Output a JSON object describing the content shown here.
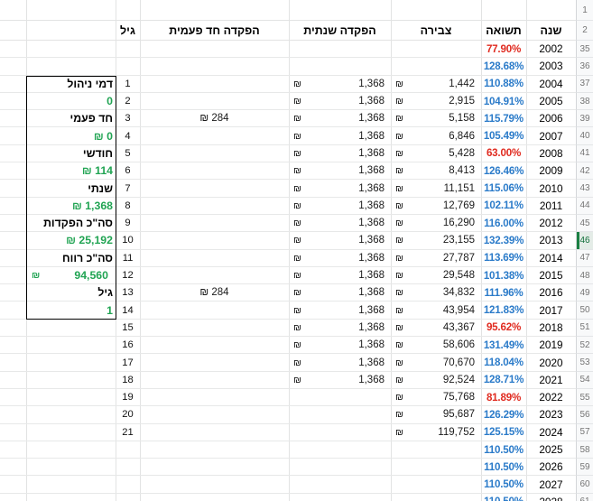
{
  "app": {
    "type": "spreadsheet",
    "direction": "rtl"
  },
  "currency_symbol": "₪",
  "colors": {
    "positive_return": "#2b7bc9",
    "negative_return": "#e02b20",
    "panel_value_green": "#21a453",
    "selected_row_green": "#1b8043",
    "grid_line": "#e2e3e3",
    "gutter_background": "#f8f9fa",
    "gutter_text": "#757575"
  },
  "columns": {
    "year": "שנה",
    "return": "תשואה",
    "accumulation": "צבירה",
    "annual_deposit": "הפקדה שנתית",
    "one_time_deposit": "הפקדה חד פעמית",
    "age": "גיל"
  },
  "gutter": {
    "top_rows": [
      "1",
      "2"
    ],
    "selected_row": "46"
  },
  "left_panel": {
    "cells": [
      {
        "type": "label",
        "text": "דמי ניהול"
      },
      {
        "type": "value",
        "text": "0"
      },
      {
        "type": "label",
        "text": "חד פעמי"
      },
      {
        "type": "value",
        "text": "0",
        "currency": true
      },
      {
        "type": "label",
        "text": "חודשי"
      },
      {
        "type": "value",
        "text": "114",
        "currency": true
      },
      {
        "type": "label",
        "text": "שנתי"
      },
      {
        "type": "value",
        "text": "1,368",
        "currency": true
      },
      {
        "type": "label",
        "text": "סה\"כ הפקדות"
      },
      {
        "type": "value",
        "text": "25,192",
        "currency": true
      },
      {
        "type": "label",
        "text": "סה\"כ רווח"
      },
      {
        "type": "value_accounting",
        "text": "94,560"
      },
      {
        "type": "label",
        "text": "גיל"
      },
      {
        "type": "value",
        "text": "1"
      }
    ]
  },
  "rows": [
    {
      "n": "35",
      "year": "2002",
      "ret": "77.90%",
      "neg": true
    },
    {
      "n": "36",
      "year": "2003",
      "ret": "128.68%"
    },
    {
      "n": "37",
      "year": "2004",
      "ret": "110.88%",
      "accum": "1,442",
      "annual": "1,368",
      "age": "1"
    },
    {
      "n": "38",
      "year": "2005",
      "ret": "104.91%",
      "accum": "2,915",
      "annual": "1,368",
      "age": "2"
    },
    {
      "n": "39",
      "year": "2006",
      "ret": "115.79%",
      "accum": "5,158",
      "annual": "1,368",
      "onetime": "284",
      "age": "3"
    },
    {
      "n": "40",
      "year": "2007",
      "ret": "105.49%",
      "accum": "6,846",
      "annual": "1,368",
      "age": "4"
    },
    {
      "n": "41",
      "year": "2008",
      "ret": "63.00%",
      "neg": true,
      "accum": "5,428",
      "annual": "1,368",
      "age": "5"
    },
    {
      "n": "42",
      "year": "2009",
      "ret": "126.46%",
      "accum": "8,413",
      "annual": "1,368",
      "age": "6"
    },
    {
      "n": "43",
      "year": "2010",
      "ret": "115.06%",
      "accum": "11,151",
      "annual": "1,368",
      "age": "7"
    },
    {
      "n": "44",
      "year": "2011",
      "ret": "102.11%",
      "accum": "12,769",
      "annual": "1,368",
      "age": "8"
    },
    {
      "n": "45",
      "year": "2012",
      "ret": "116.00%",
      "accum": "16,290",
      "annual": "1,368",
      "age": "9"
    },
    {
      "n": "46",
      "year": "2013",
      "ret": "132.39%",
      "accum": "23,155",
      "annual": "1,368",
      "age": "10",
      "selected": true
    },
    {
      "n": "47",
      "year": "2014",
      "ret": "113.69%",
      "accum": "27,787",
      "annual": "1,368",
      "age": "11"
    },
    {
      "n": "48",
      "year": "2015",
      "ret": "101.38%",
      "accum": "29,548",
      "annual": "1,368",
      "age": "12"
    },
    {
      "n": "49",
      "year": "2016",
      "ret": "111.96%",
      "accum": "34,832",
      "annual": "1,368",
      "onetime": "284",
      "age": "13"
    },
    {
      "n": "50",
      "year": "2017",
      "ret": "121.83%",
      "accum": "43,954",
      "annual": "1,368",
      "age": "14"
    },
    {
      "n": "51",
      "year": "2018",
      "ret": "95.62%",
      "neg": true,
      "accum": "43,367",
      "annual": "1,368",
      "age": "15"
    },
    {
      "n": "52",
      "year": "2019",
      "ret": "131.49%",
      "accum": "58,606",
      "annual": "1,368",
      "age": "16"
    },
    {
      "n": "53",
      "year": "2020",
      "ret": "118.04%",
      "accum": "70,670",
      "annual": "1,368",
      "age": "17"
    },
    {
      "n": "54",
      "year": "2021",
      "ret": "128.71%",
      "accum": "92,524",
      "annual": "1,368",
      "age": "18"
    },
    {
      "n": "55",
      "year": "2022",
      "ret": "81.89%",
      "neg": true,
      "accum": "75,768",
      "age": "19"
    },
    {
      "n": "56",
      "year": "2023",
      "ret": "126.29%",
      "accum": "95,687",
      "age": "20"
    },
    {
      "n": "57",
      "year": "2024",
      "ret": "125.15%",
      "accum": "119,752",
      "age": "21"
    },
    {
      "n": "58",
      "year": "2025",
      "ret": "110.50%"
    },
    {
      "n": "59",
      "year": "2026",
      "ret": "110.50%"
    },
    {
      "n": "60",
      "year": "2027",
      "ret": "110.50%"
    },
    {
      "n": "61",
      "year": "2028",
      "ret": "110.50%"
    }
  ]
}
